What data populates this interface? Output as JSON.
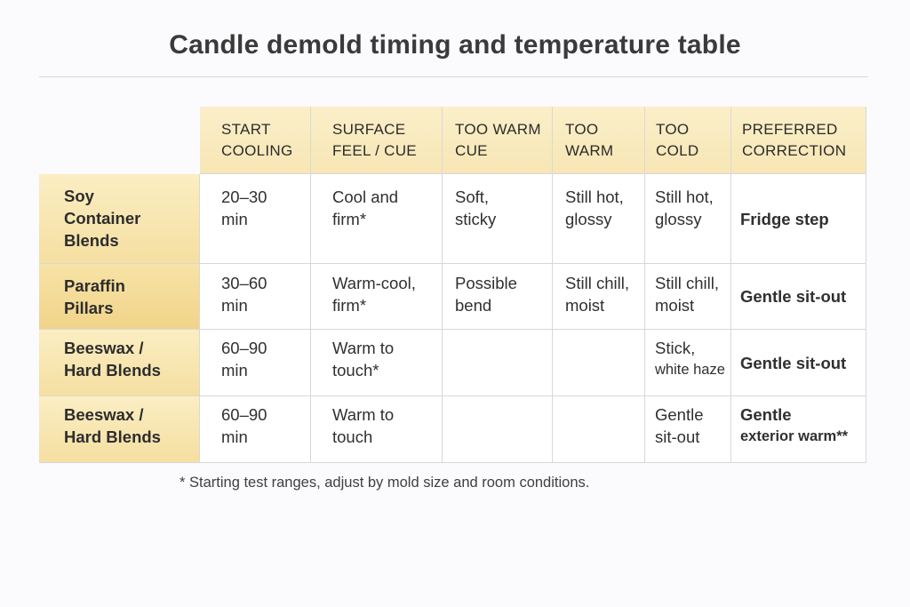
{
  "title": "Candle demold timing and temperature table",
  "table": {
    "headers": [
      [
        "START",
        "COOLING"
      ],
      [
        "SURFACE",
        "FEEL / CUE"
      ],
      [
        "TOO WARM",
        "CUE"
      ],
      [
        "TOO",
        "WARM"
      ],
      [
        "TOO",
        "COLD"
      ],
      [
        "PREFERRED",
        "CORRECTION"
      ]
    ],
    "rows": [
      {
        "name": [
          "Soy",
          "Container",
          "Blends"
        ],
        "start": [
          "20–30",
          "min"
        ],
        "feel": [
          "Cool and",
          "firm*"
        ],
        "too_warm_cue": [
          "Soft,",
          "sticky"
        ],
        "too_warm": [
          "Still hot,",
          "glossy"
        ],
        "too_cold": [
          "Still hot,",
          "glossy"
        ],
        "correction": [
          "Fridge step"
        ]
      },
      {
        "name": [
          "Paraffin",
          "Pillars"
        ],
        "start": [
          "30–60",
          "min"
        ],
        "feel": [
          "Warm-cool,",
          "firm*"
        ],
        "too_warm_cue": [
          "Possible",
          "bend"
        ],
        "too_warm": [
          "Still chill,",
          "moist"
        ],
        "too_cold": [
          "Still chill,",
          "moist"
        ],
        "correction": [
          "Gentle sit-out"
        ]
      },
      {
        "name": [
          "Beeswax /",
          "Hard Blends"
        ],
        "start": [
          "60–90",
          "min"
        ],
        "feel": [
          "Warm to",
          "touch*"
        ],
        "too_warm_cue": [
          "",
          ""
        ],
        "too_warm": [
          "",
          ""
        ],
        "too_cold": [
          "Stick,",
          "white haze"
        ],
        "correction": [
          "Gentle sit-out"
        ]
      },
      {
        "name": [
          "Beeswax /",
          "Hard Blends"
        ],
        "start": [
          "60–90",
          "min"
        ],
        "feel": [
          "Warm to",
          "touch"
        ],
        "too_warm_cue": [
          "",
          ""
        ],
        "too_warm": [
          "",
          ""
        ],
        "too_cold": [
          "Gentle",
          "sit-out"
        ],
        "correction": [
          "Gentle",
          "exterior warm**"
        ]
      }
    ]
  },
  "footnote": "* Starting test ranges, adjust by mold size and room conditions."
}
